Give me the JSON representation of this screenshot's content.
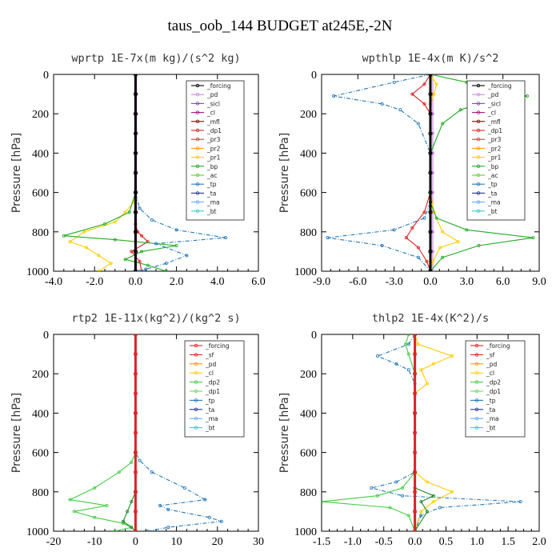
{
  "title": "taus_oob_144  BUDGET at245E,-2N",
  "chart_data": [
    {
      "type": "line",
      "title": "wprtp  1E-7x(m kg)/(s^2 kg)",
      "ylabel": "Pressure [hPa]",
      "xlim": [
        -4,
        6
      ],
      "ylim": [
        1000,
        0
      ],
      "xticks": [
        "-4.0",
        "-2.0",
        "0.0",
        "2.0",
        "4.0",
        "6.0"
      ],
      "yticks": [
        "0",
        "200",
        "400",
        "600",
        "800",
        "1000"
      ],
      "legend": [
        "_forcing",
        "_pd",
        "_sicl",
        "_cl",
        "_mfl",
        "_dp1",
        "_pr3",
        "_pr2",
        "_pr1",
        "_bp",
        "_ac",
        "_tp",
        "_ta",
        "_ma",
        "_bt"
      ],
      "series": [
        {
          "name": "_forcing",
          "color": "#000000",
          "x": [
            0,
            0,
            0,
            0,
            0,
            0,
            0,
            0,
            0,
            0,
            0
          ],
          "y": [
            0,
            100,
            200,
            300,
            400,
            500,
            600,
            700,
            800,
            900,
            1000
          ]
        },
        {
          "name": "_pd",
          "color": "#cc88dd",
          "x": [
            0.05,
            0.05,
            0.05,
            0.05,
            0.05,
            0.05,
            0.05,
            0.05,
            0.05,
            0.05,
            0.05
          ],
          "y": [
            0,
            100,
            200,
            300,
            400,
            500,
            600,
            700,
            800,
            900,
            1000
          ]
        },
        {
          "name": "_dp1",
          "color": "#dd2222",
          "x": [
            0,
            0,
            0,
            0,
            0,
            0,
            0.1,
            0.3,
            0.6,
            -0.2,
            0.2,
            0.3
          ],
          "y": [
            0,
            200,
            400,
            600,
            700,
            760,
            800,
            820,
            850,
            900,
            950,
            1000
          ]
        },
        {
          "name": "_pr1",
          "color": "#ffcc00",
          "x": [
            0,
            0,
            0,
            -0.1,
            -0.5,
            -1.0,
            -2.5,
            -3.2,
            -2.4,
            -1.8,
            -1.2,
            -1.8
          ],
          "y": [
            0,
            400,
            600,
            650,
            700,
            750,
            800,
            850,
            880,
            920,
            960,
            1000
          ]
        },
        {
          "name": "_bp",
          "color": "#22aa22",
          "x": [
            0,
            0,
            0,
            -0.3,
            -1.5,
            -3.5,
            -1.0,
            2.0,
            0.3,
            -0.5,
            0.6,
            1.5
          ],
          "y": [
            0,
            400,
            600,
            700,
            760,
            820,
            840,
            870,
            900,
            940,
            970,
            1000
          ]
        },
        {
          "name": "_tp",
          "color": "#2277bb",
          "x": [
            0,
            0,
            0,
            0.2,
            0.8,
            2.0,
            4.4,
            1.0,
            2.5,
            1.5,
            0.5,
            0.2
          ],
          "y": [
            0,
            400,
            600,
            680,
            740,
            790,
            830,
            860,
            920,
            960,
            990,
            1000
          ]
        }
      ]
    },
    {
      "type": "line",
      "title": "wpthlp  1E-4x(m K)/s^2",
      "ylabel": "Pressure [hPa]",
      "xlim": [
        -9,
        9
      ],
      "ylim": [
        1000,
        0
      ],
      "xticks": [
        "-9.0",
        "-6.0",
        "-3.0",
        "0.0",
        "3.0",
        "6.0",
        "9.0"
      ],
      "yticks": [
        "0",
        "200",
        "400",
        "600",
        "800",
        "1000"
      ],
      "legend": [
        "_forcing",
        "_pd",
        "_sicl",
        "_cl",
        "_mfl",
        "_dp1",
        "_pr3",
        "_pr2",
        "_pr1",
        "_bp",
        "_ac",
        "_tp",
        "_ta",
        "_ma",
        "_bt"
      ],
      "series": [
        {
          "name": "_forcing",
          "color": "#000000",
          "x": [
            0,
            0,
            0,
            0,
            0,
            0,
            0,
            0,
            0,
            0,
            0
          ],
          "y": [
            0,
            100,
            200,
            300,
            400,
            500,
            600,
            700,
            800,
            900,
            1000
          ]
        },
        {
          "name": "_pd",
          "color": "#cc88dd",
          "x": [
            0.2,
            0.2,
            0.2,
            0.2,
            0.2,
            0.2,
            0.2,
            0.2,
            0.2,
            0.2,
            0.2
          ],
          "y": [
            0,
            100,
            200,
            300,
            400,
            500,
            600,
            700,
            800,
            900,
            1000
          ]
        },
        {
          "name": "_dp1",
          "color": "#dd2222",
          "x": [
            0,
            -0.5,
            -1.5,
            -0.5,
            0,
            0,
            0,
            -0.5,
            -1.5,
            -2.0,
            -1.0,
            -0.3,
            0
          ],
          "y": [
            0,
            50,
            100,
            150,
            200,
            400,
            600,
            700,
            780,
            830,
            880,
            950,
            1000
          ]
        },
        {
          "name": "_pr1",
          "color": "#ffcc00",
          "x": [
            0,
            0.5,
            0.3,
            0,
            0,
            0,
            0,
            0.3,
            1.0,
            2.3,
            0.8,
            0.2,
            0
          ],
          "y": [
            0,
            50,
            100,
            150,
            200,
            400,
            600,
            700,
            800,
            850,
            880,
            950,
            1000
          ]
        },
        {
          "name": "_bp",
          "color": "#22aa22",
          "x": [
            0,
            3.0,
            8.0,
            4.0,
            2.5,
            1.0,
            0,
            0,
            0.5,
            3.0,
            8.5,
            4.0,
            1.0,
            0
          ],
          "y": [
            0,
            40,
            110,
            150,
            180,
            250,
            400,
            650,
            730,
            790,
            830,
            870,
            930,
            1000
          ]
        },
        {
          "name": "_tp",
          "color": "#2277bb",
          "x": [
            0,
            -3.0,
            -8.0,
            -4.0,
            -2.5,
            -1.0,
            0,
            0,
            -0.5,
            -3.0,
            -8.5,
            -4.0,
            -1.0,
            0
          ],
          "y": [
            0,
            40,
            110,
            150,
            180,
            250,
            400,
            650,
            730,
            790,
            830,
            870,
            930,
            1000
          ]
        }
      ]
    },
    {
      "type": "line",
      "title": "rtp2  1E-11x(kg^2)/(kg^2 s)",
      "ylabel": "Pressure [hPa]",
      "xlim": [
        -20,
        30
      ],
      "ylim": [
        1000,
        0
      ],
      "xticks": [
        "-20",
        "-10",
        "0",
        "10",
        "20",
        "30"
      ],
      "yticks": [
        "0",
        "200",
        "400",
        "600",
        "800",
        "1000"
      ],
      "legend": [
        "_forcing",
        "_sf",
        "_pd",
        "_cl",
        "_dp2",
        "_dp1",
        "_tp",
        "_ta",
        "_ma",
        "_bt"
      ],
      "series": [
        {
          "name": "_forcing",
          "color": "#dd2222",
          "x": [
            0,
            0,
            0,
            0,
            0,
            0,
            0,
            0,
            0,
            0,
            0
          ],
          "y": [
            0,
            100,
            200,
            300,
            400,
            500,
            600,
            700,
            800,
            900,
            1000
          ]
        },
        {
          "name": "_dp1",
          "color": "#44cc44",
          "x": [
            0,
            0,
            0,
            -1,
            -4,
            -10,
            -16,
            -7,
            -15,
            -10,
            -3,
            -1,
            -5
          ],
          "y": [
            0,
            400,
            600,
            650,
            700,
            780,
            840,
            870,
            900,
            930,
            960,
            980,
            1000
          ]
        },
        {
          "name": "_tp",
          "color": "#2277bb",
          "x": [
            0,
            0,
            0,
            1,
            4,
            12,
            17,
            6,
            8,
            18,
            21,
            8,
            3
          ],
          "y": [
            0,
            400,
            600,
            640,
            700,
            780,
            840,
            870,
            890,
            930,
            950,
            980,
            1000
          ]
        },
        {
          "name": "_dp2",
          "color": "#228822",
          "x": [
            0,
            0,
            -1,
            -2,
            -3,
            -1,
            0
          ],
          "y": [
            0,
            800,
            850,
            900,
            950,
            980,
            1000
          ]
        }
      ]
    },
    {
      "type": "line",
      "title": "thlp2  1E-4x(K^2)/s",
      "ylabel": "Pressure [hPa]",
      "xlim": [
        -1.5,
        2.0
      ],
      "ylim": [
        1000,
        0
      ],
      "xticks": [
        "-1.5",
        "-1.0",
        "-0.5",
        "0.0",
        "0.5",
        "1.0",
        "1.5",
        "2.0"
      ],
      "yticks": [
        "0",
        "200",
        "400",
        "600",
        "800",
        "1000"
      ],
      "legend": [
        "_forcing",
        "_sf",
        "_pd",
        "_cl",
        "_dp2",
        "_dp1",
        "_tp",
        "_ta",
        "_ma",
        "_bt"
      ],
      "series": [
        {
          "name": "_forcing",
          "color": "#dd2222",
          "x": [
            0,
            0,
            0,
            0,
            0,
            0,
            0,
            0,
            0,
            0,
            0
          ],
          "y": [
            0,
            100,
            200,
            300,
            400,
            500,
            600,
            700,
            800,
            900,
            1000
          ]
        },
        {
          "name": "_cl",
          "color": "#ffcc00",
          "x": [
            0,
            0.05,
            0.6,
            0.3,
            0.1,
            0.2,
            0,
            0,
            0.2,
            0.6,
            0.3,
            0.1,
            0
          ],
          "y": [
            0,
            50,
            110,
            150,
            180,
            250,
            300,
            700,
            750,
            800,
            850,
            900,
            1000
          ]
        },
        {
          "name": "_tp",
          "color": "#2277bb",
          "x": [
            0,
            -0.1,
            -0.6,
            -0.3,
            -0.1,
            0,
            0,
            -0.3,
            -0.7,
            -0.2,
            1.7,
            0.4,
            0.1,
            0
          ],
          "y": [
            0,
            50,
            110,
            150,
            180,
            250,
            700,
            750,
            780,
            820,
            850,
            880,
            920,
            1000
          ]
        },
        {
          "name": "_dp1",
          "color": "#44cc44",
          "x": [
            -0.1,
            -0.15,
            -0.1,
            0,
            0,
            0,
            -0.2,
            -0.6,
            -1.5,
            -0.4,
            -0.1,
            0
          ],
          "y": [
            0,
            50,
            100,
            200,
            400,
            700,
            780,
            820,
            850,
            880,
            920,
            1000
          ]
        },
        {
          "name": "_dp2",
          "color": "#228822",
          "x": [
            0,
            0,
            0,
            0,
            0.3,
            0.1,
            0.2,
            0
          ],
          "y": [
            0,
            400,
            700,
            780,
            820,
            850,
            900,
            1000
          ]
        }
      ]
    }
  ]
}
